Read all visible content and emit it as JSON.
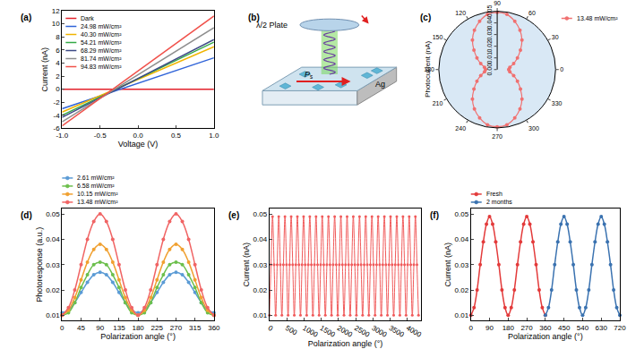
{
  "chart_data": [
    {
      "panel_label": "(a)",
      "type": "line",
      "x_label": "Voltage (V)",
      "y_label": "Current (nA)",
      "x": [
        -1,
        0,
        1
      ],
      "series": [
        {
          "name": "Dark",
          "color": "#e3202a",
          "values": [
            0,
            0,
            0
          ]
        },
        {
          "name": "24.98 mW/cm²",
          "color": "#2f63d8",
          "values": [
            -3.0,
            0.9,
            4.8
          ]
        },
        {
          "name": "40.30 mW/cm²",
          "color": "#f0b400",
          "values": [
            -3.5,
            1.5,
            6.5
          ]
        },
        {
          "name": "54.21 mW/cm²",
          "color": "#33a946",
          "values": [
            -4.0,
            1.6,
            7.2
          ]
        },
        {
          "name": "68.29 mW/cm²",
          "color": "#3d4a86",
          "values": [
            -4.3,
            1.7,
            7.6
          ]
        },
        {
          "name": "81.74 mW/cm²",
          "color": "#8e8e8e",
          "values": [
            -5.0,
            2.2,
            9.4
          ]
        },
        {
          "name": "94.83 mW/cm²",
          "color": "#f0504a",
          "values": [
            -5.6,
            2.8,
            11.2
          ]
        }
      ],
      "xlim": [
        -1,
        1
      ],
      "xticks": [
        {
          "value": -1,
          "label": "-1.0"
        },
        -0.5,
        {
          "value": 0,
          "label": "0.0"
        },
        0.5,
        {
          "value": 1,
          "label": "1.0"
        }
      ],
      "ylim": [
        -6,
        12
      ],
      "yticks": [
        -6,
        -4,
        -2,
        0,
        2,
        4,
        6,
        8,
        10,
        12
      ],
      "legend": "upper left",
      "grid": false
    },
    {
      "panel_label": "(c)",
      "type": "polar",
      "r_label": "Photocurrent (nA)",
      "series": [
        {
          "name": "13.48 mW/cm²",
          "color": "#f07070",
          "marker": "circle",
          "theta": [
            0,
            10,
            20,
            30,
            40,
            50,
            60,
            70,
            80,
            90,
            100,
            110,
            120,
            130,
            140,
            150,
            160,
            170,
            180,
            190,
            200,
            210,
            220,
            230,
            240,
            250,
            260,
            270,
            280,
            290,
            300,
            310,
            320,
            330,
            340,
            350,
            360
          ],
          "values": [
            0.01,
            0.011,
            0.015,
            0.02,
            0.026,
            0.033,
            0.039,
            0.044,
            0.048,
            0.049,
            0.048,
            0.044,
            0.039,
            0.033,
            0.026,
            0.02,
            0.015,
            0.011,
            0.01,
            0.011,
            0.015,
            0.02,
            0.026,
            0.033,
            0.039,
            0.044,
            0.048,
            0.049,
            0.048,
            0.044,
            0.039,
            0.033,
            0.026,
            0.02,
            0.015,
            0.011,
            0.01
          ]
        }
      ],
      "rlim": [
        0,
        0.05
      ],
      "rticks": [
        {
          "value": 0,
          "label": "0.00"
        },
        0.01,
        0.02,
        0.03,
        0.04,
        0.05
      ],
      "thetaticks": [
        0,
        30,
        60,
        90,
        120,
        150,
        180,
        210,
        240,
        270,
        300,
        330
      ],
      "legend": "upper right",
      "grid": false
    },
    {
      "panel_label": "(d)",
      "type": "line",
      "x_label": "Polarization angle (°)",
      "y_label": "Photoresponse (a.u.)",
      "x": [
        0,
        15,
        30,
        45,
        60,
        75,
        90,
        105,
        120,
        135,
        150,
        165,
        180,
        195,
        210,
        225,
        240,
        255,
        270,
        285,
        300,
        315,
        330,
        345,
        360
      ],
      "series": [
        {
          "name": "2.61 mW/cm²",
          "color": "#5b9bd5",
          "marker": "circle",
          "values": [
            0.011,
            0.012,
            0.015,
            0.019,
            0.023,
            0.026,
            0.027,
            0.026,
            0.023,
            0.019,
            0.015,
            0.012,
            0.011,
            0.012,
            0.015,
            0.019,
            0.023,
            0.026,
            0.027,
            0.026,
            0.023,
            0.019,
            0.015,
            0.012,
            0.011
          ]
        },
        {
          "name": "6.58 mW/cm²",
          "color": "#6cbf4c",
          "marker": "circle",
          "values": [
            0.01,
            0.011,
            0.015,
            0.021,
            0.026,
            0.03,
            0.031,
            0.03,
            0.026,
            0.021,
            0.015,
            0.011,
            0.01,
            0.011,
            0.015,
            0.021,
            0.026,
            0.03,
            0.031,
            0.03,
            0.026,
            0.021,
            0.015,
            0.011,
            0.01
          ]
        },
        {
          "name": "10.15 mW/cm²",
          "color": "#f0a030",
          "marker": "circle",
          "values": [
            0.01,
            0.012,
            0.017,
            0.024,
            0.031,
            0.036,
            0.038,
            0.036,
            0.031,
            0.024,
            0.017,
            0.012,
            0.01,
            0.012,
            0.017,
            0.024,
            0.031,
            0.036,
            0.038,
            0.036,
            0.031,
            0.024,
            0.017,
            0.012,
            0.01
          ]
        },
        {
          "name": "13.48 mW/cm²",
          "color": "#f06464",
          "marker": "circle",
          "values": [
            0.01,
            0.013,
            0.02,
            0.03,
            0.04,
            0.047,
            0.05,
            0.047,
            0.04,
            0.03,
            0.02,
            0.013,
            0.01,
            0.013,
            0.02,
            0.03,
            0.04,
            0.047,
            0.05,
            0.047,
            0.04,
            0.03,
            0.02,
            0.013,
            0.01
          ]
        }
      ],
      "xlim": [
        0,
        360
      ],
      "xticks": [
        0,
        45,
        90,
        135,
        180,
        225,
        270,
        315,
        360
      ],
      "ylim": [
        0.008,
        0.052
      ],
      "yticks": [
        0.01,
        0.02,
        0.03,
        0.04,
        0.05
      ],
      "legend": "upper left",
      "grid": false
    },
    {
      "panel_label": "(e)",
      "type": "line",
      "x_label": "Polarization angle (°)",
      "y_label": "Current (nA)",
      "x": [
        0,
        45,
        90,
        135,
        180,
        225,
        270,
        315,
        360,
        405,
        450,
        495,
        540,
        585,
        630,
        675,
        720,
        765,
        810,
        855,
        900,
        945,
        990,
        1035,
        1080,
        1125,
        1170,
        1215,
        1260,
        1305,
        1350,
        1395,
        1440,
        1485,
        1530,
        1575,
        1620,
        1665,
        1710,
        1755,
        1800,
        1845,
        1890,
        1935,
        1980,
        2025,
        2070,
        2115,
        2160,
        2205,
        2250,
        2295,
        2340,
        2385,
        2430,
        2475,
        2520,
        2565,
        2610,
        2655,
        2700,
        2745,
        2790,
        2835,
        2880,
        2925,
        2970,
        3015,
        3060,
        3105,
        3150,
        3195,
        3240,
        3285,
        3330,
        3375,
        3420,
        3465,
        3510,
        3555,
        3600,
        3645,
        3690,
        3735,
        3780,
        3825,
        3870,
        3915,
        3960,
        4005,
        4050,
        4095,
        4140,
        4185,
        4230,
        4275,
        4320
      ],
      "series": [
        {
          "color": "#f05a5a",
          "marker": "circle",
          "values": [
            0.01,
            0.03,
            0.049,
            0.03,
            0.01,
            0.03,
            0.049,
            0.03,
            0.01,
            0.03,
            0.049,
            0.03,
            0.01,
            0.03,
            0.049,
            0.03,
            0.01,
            0.03,
            0.049,
            0.03,
            0.01,
            0.03,
            0.049,
            0.03,
            0.01,
            0.03,
            0.049,
            0.03,
            0.01,
            0.03,
            0.049,
            0.03,
            0.01,
            0.03,
            0.049,
            0.03,
            0.01,
            0.03,
            0.049,
            0.03,
            0.01,
            0.03,
            0.049,
            0.03,
            0.01,
            0.03,
            0.049,
            0.03,
            0.01,
            0.03,
            0.049,
            0.03,
            0.01,
            0.03,
            0.049,
            0.03,
            0.01,
            0.03,
            0.049,
            0.03,
            0.01,
            0.03,
            0.049,
            0.03,
            0.01,
            0.03,
            0.049,
            0.03,
            0.01,
            0.03,
            0.049,
            0.03,
            0.01,
            0.03,
            0.049,
            0.03,
            0.01,
            0.03,
            0.049,
            0.03,
            0.01,
            0.03,
            0.049,
            0.03,
            0.01,
            0.03,
            0.049,
            0.03,
            0.01,
            0.03,
            0.049,
            0.03,
            0.01,
            0.03,
            0.049,
            0.03,
            0.01
          ]
        }
      ],
      "xlim": [
        0,
        4400
      ],
      "xticks": [
        0,
        500,
        1000,
        1500,
        2000,
        2500,
        3000,
        3500,
        4000
      ],
      "ylim": [
        0.008,
        0.052
      ],
      "yticks": [
        0.01,
        0.02,
        0.03,
        0.04,
        0.05
      ],
      "grid": false
    },
    {
      "panel_label": "(f)",
      "type": "line",
      "x_label": "Polarization angle (°)",
      "y_label": "Current (nA)",
      "series": [
        {
          "name": "Fresh",
          "color": "#e33a3a",
          "marker": "circle",
          "x": [
            0,
            15,
            30,
            45,
            60,
            75,
            90,
            105,
            120,
            135,
            150,
            165,
            180,
            195,
            210,
            225,
            240,
            255,
            270,
            285,
            300,
            315,
            330,
            345,
            360
          ],
          "values": [
            0.01,
            0.013,
            0.02,
            0.03,
            0.039,
            0.046,
            0.049,
            0.046,
            0.039,
            0.03,
            0.02,
            0.013,
            0.01,
            0.013,
            0.02,
            0.03,
            0.039,
            0.046,
            0.049,
            0.046,
            0.039,
            0.03,
            0.02,
            0.013,
            0.01
          ]
        },
        {
          "name": "2 months",
          "color": "#3a72b0",
          "marker": "circle",
          "x": [
            360,
            375,
            390,
            405,
            420,
            435,
            450,
            465,
            480,
            495,
            510,
            525,
            540,
            555,
            570,
            585,
            600,
            615,
            630,
            645,
            660,
            675,
            690,
            705,
            720
          ],
          "values": [
            0.01,
            0.013,
            0.02,
            0.03,
            0.039,
            0.046,
            0.049,
            0.046,
            0.039,
            0.03,
            0.02,
            0.013,
            0.01,
            0.013,
            0.02,
            0.03,
            0.039,
            0.046,
            0.049,
            0.046,
            0.039,
            0.03,
            0.02,
            0.013,
            0.01
          ]
        }
      ],
      "xlim": [
        0,
        720
      ],
      "xticks": [
        0,
        90,
        180,
        270,
        360,
        450,
        540,
        630,
        720
      ],
      "ylim": [
        0.008,
        0.052
      ],
      "yticks": [
        0.01,
        0.02,
        0.03,
        0.04,
        0.05
      ],
      "legend": "upper left",
      "grid": false
    }
  ],
  "diagram": {
    "panel_label": "(b)",
    "plate_label": "λ/2 Plate",
    "polarization_label": "P",
    "polarization_subscript": "s",
    "electrode_label": "Ag"
  }
}
